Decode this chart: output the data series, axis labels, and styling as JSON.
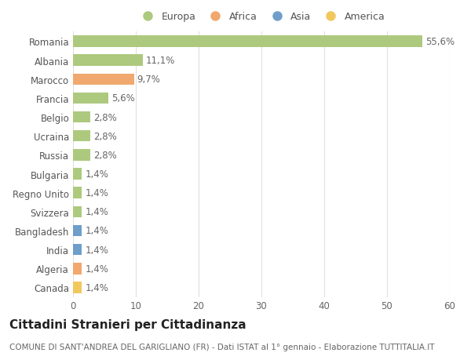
{
  "countries": [
    "Romania",
    "Albania",
    "Marocco",
    "Francia",
    "Belgio",
    "Ucraina",
    "Russia",
    "Bulgaria",
    "Regno Unito",
    "Svizzera",
    "Bangladesh",
    "India",
    "Algeria",
    "Canada"
  ],
  "values": [
    55.6,
    11.1,
    9.7,
    5.6,
    2.8,
    2.8,
    2.8,
    1.4,
    1.4,
    1.4,
    1.4,
    1.4,
    1.4,
    1.4
  ],
  "labels": [
    "55,6%",
    "11,1%",
    "9,7%",
    "5,6%",
    "2,8%",
    "2,8%",
    "2,8%",
    "1,4%",
    "1,4%",
    "1,4%",
    "1,4%",
    "1,4%",
    "1,4%",
    "1,4%"
  ],
  "colors": [
    "#adc97e",
    "#adc97e",
    "#f0a86e",
    "#adc97e",
    "#adc97e",
    "#adc97e",
    "#adc97e",
    "#adc97e",
    "#adc97e",
    "#adc97e",
    "#6e9ec9",
    "#6e9ec9",
    "#f0a86e",
    "#f0c85e"
  ],
  "continent_colors": {
    "Europa": "#adc97e",
    "Africa": "#f0a86e",
    "Asia": "#6e9ec9",
    "America": "#f0c85e"
  },
  "legend_labels": [
    "Europa",
    "Africa",
    "Asia",
    "America"
  ],
  "xlim": [
    0,
    60
  ],
  "xticks": [
    0,
    10,
    20,
    30,
    40,
    50,
    60
  ],
  "title": "Cittadini Stranieri per Cittadinanza",
  "subtitle": "COMUNE DI SANT'ANDREA DEL GARIGLIANO (FR) - Dati ISTAT al 1° gennaio - Elaborazione TUTTITALIA.IT",
  "bg_color": "#ffffff",
  "grid_color": "#e0e0e0",
  "bar_height": 0.6,
  "label_fontsize": 8.5,
  "tick_fontsize": 8.5,
  "title_fontsize": 11,
  "subtitle_fontsize": 7.5
}
